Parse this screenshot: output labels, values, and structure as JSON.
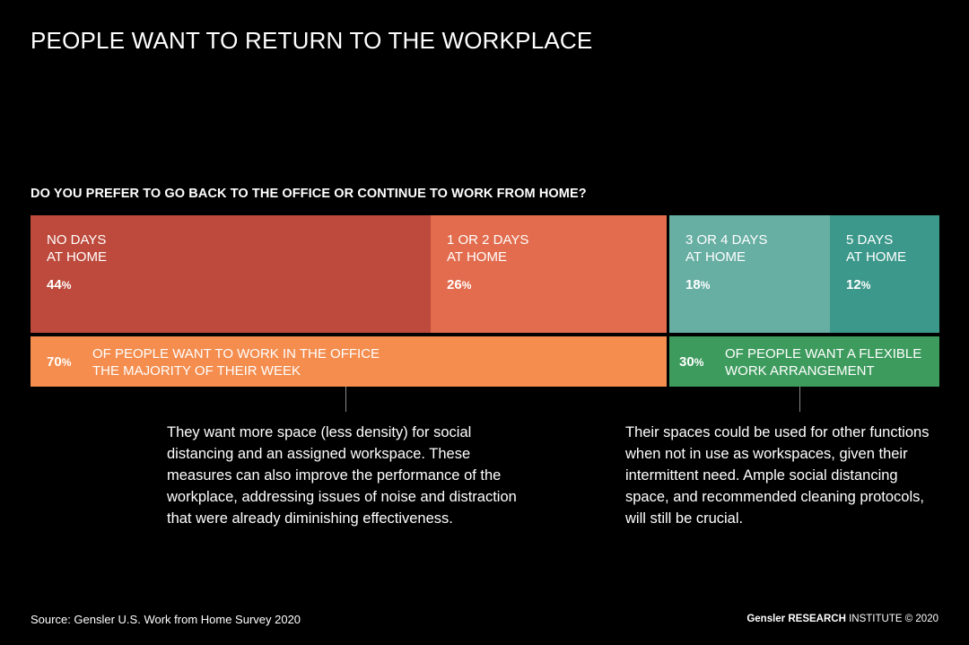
{
  "title": "PEOPLE WANT TO RETURN TO THE WORKPLACE",
  "chart_data": {
    "type": "bar",
    "subtype": "stacked-100-horizontal",
    "title": "DO YOU PREFER TO GO BACK TO THE OFFICE OR CONTINUE TO WORK FROM HOME?",
    "segments": [
      {
        "label_line1": "NO DAYS",
        "label_line2": "AT HOME",
        "value": 44,
        "display": "44",
        "color": "#bd4a3c"
      },
      {
        "label_line1": "1 OR 2 DAYS",
        "label_line2": "AT HOME",
        "value": 26,
        "display": "26",
        "color": "#e26c4d"
      },
      {
        "label_line1": "3 OR 4 DAYS",
        "label_line2": "AT HOME",
        "value": 18,
        "display": "18",
        "color": "#67aea3"
      },
      {
        "label_line1": "5 DAYS",
        "label_line2": "AT HOME",
        "value": 12,
        "display": "12",
        "color": "#3c988b"
      }
    ],
    "groups": [
      {
        "value": 70,
        "display": "70",
        "text_line1": "OF PEOPLE WANT TO WORK IN THE OFFICE",
        "text_line2": "THE MAJORITY OF THEIR WEEK",
        "color": "#f48d4e"
      },
      {
        "value": 30,
        "display": "30",
        "text_line1": "OF PEOPLE WANT A FLEXIBLE",
        "text_line2": "WORK ARRANGEMENT",
        "color": "#3e9b5e"
      }
    ],
    "percent_symbol": "%"
  },
  "notes": {
    "office": [
      "They want more space (less density) for social",
      "distancing and an assigned workspace. These",
      "measures can also improve the performance of the",
      "workplace, addressing issues of noise and distraction",
      "that were already diminishing effectiveness."
    ],
    "flexible": [
      "Their spaces could be used for other functions",
      "when not in use as workspaces, given their",
      "intermittent need. Ample social distancing",
      "space, and recommended cleaning protocols,",
      "will still be crucial."
    ]
  },
  "footer": {
    "source": "Source: Gensler U.S. Work from Home Survey 2020",
    "brand": "Gensler",
    "research": "RESEARCH",
    "institute": "INSTITUTE",
    "copyright": "© 2020"
  }
}
